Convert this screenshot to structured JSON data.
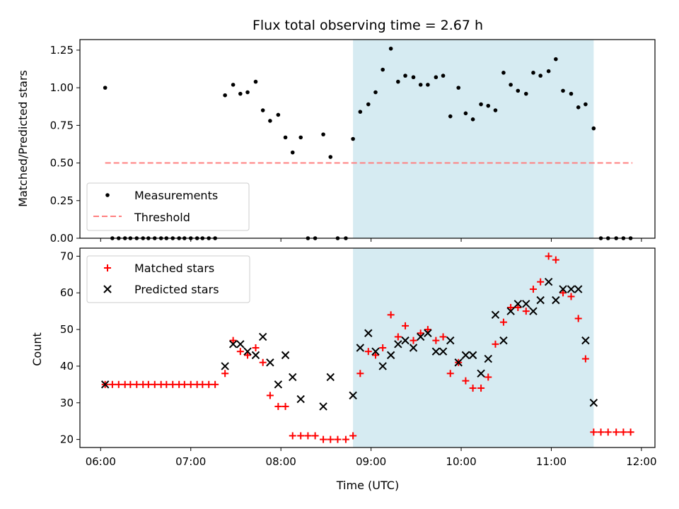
{
  "title": "Flux total observing time = 2.67 h",
  "colors": {
    "measurement": "#000000",
    "threshold": "#ff7f7f",
    "matched": "#ff0000",
    "predicted": "#000000",
    "window": "#add8e6"
  },
  "chart_data": [
    {
      "type": "scatter",
      "panel": "top",
      "ylabel": "Matched/Predicted stars",
      "xlim": [
        5.77,
        12.15
      ],
      "ylim": [
        0,
        1.32
      ],
      "yticks": [
        {
          "value": 0,
          "label": "0.00"
        },
        {
          "value": 0.25,
          "label": "0.25"
        },
        {
          "value": 0.5,
          "label": "0.50"
        },
        {
          "value": 0.75,
          "label": "0.75"
        },
        {
          "value": 1.0,
          "label": "1.00"
        },
        {
          "value": 1.25,
          "label": "1.25"
        }
      ],
      "shaded_region": {
        "x": [
          8.8,
          11.47
        ]
      },
      "threshold": {
        "name": "Threshold",
        "y": 0.5,
        "x": [
          6.05,
          11.9
        ]
      },
      "legend": {
        "location": "lower-left",
        "measurements": "Measurements",
        "threshold": "Threshold"
      },
      "series": [
        {
          "name": "Measurements",
          "points": [
            [
              6.05,
              1.0
            ],
            [
              6.13,
              0
            ],
            [
              6.2,
              0
            ],
            [
              6.27,
              0
            ],
            [
              6.33,
              0
            ],
            [
              6.4,
              0
            ],
            [
              6.47,
              0
            ],
            [
              6.53,
              0
            ],
            [
              6.6,
              0
            ],
            [
              6.67,
              0
            ],
            [
              6.73,
              0
            ],
            [
              6.8,
              0
            ],
            [
              6.87,
              0
            ],
            [
              6.93,
              0
            ],
            [
              7.0,
              0
            ],
            [
              7.07,
              0
            ],
            [
              7.13,
              0
            ],
            [
              7.2,
              0
            ],
            [
              7.27,
              0
            ],
            [
              7.38,
              0.95
            ],
            [
              7.47,
              1.02
            ],
            [
              7.55,
              0.96
            ],
            [
              7.63,
              0.97
            ],
            [
              7.72,
              1.04
            ],
            [
              7.8,
              0.85
            ],
            [
              7.88,
              0.78
            ],
            [
              7.97,
              0.82
            ],
            [
              8.05,
              0.67
            ],
            [
              8.13,
              0.57
            ],
            [
              8.22,
              0.67
            ],
            [
              8.3,
              0
            ],
            [
              8.38,
              0
            ],
            [
              8.47,
              0.69
            ],
            [
              8.55,
              0.54
            ],
            [
              8.63,
              0
            ],
            [
              8.72,
              0
            ],
            [
              8.8,
              0.66
            ],
            [
              8.88,
              0.84
            ],
            [
              8.97,
              0.89
            ],
            [
              9.05,
              0.97
            ],
            [
              9.13,
              1.12
            ],
            [
              9.22,
              1.26
            ],
            [
              9.3,
              1.04
            ],
            [
              9.38,
              1.08
            ],
            [
              9.47,
              1.07
            ],
            [
              9.55,
              1.02
            ],
            [
              9.63,
              1.02
            ],
            [
              9.72,
              1.07
            ],
            [
              9.8,
              1.08
            ],
            [
              9.88,
              0.81
            ],
            [
              9.97,
              1.0
            ],
            [
              10.05,
              0.83
            ],
            [
              10.13,
              0.79
            ],
            [
              10.22,
              0.89
            ],
            [
              10.3,
              0.88
            ],
            [
              10.38,
              0.85
            ],
            [
              10.47,
              1.1
            ],
            [
              10.55,
              1.02
            ],
            [
              10.63,
              0.98
            ],
            [
              10.72,
              0.96
            ],
            [
              10.8,
              1.1
            ],
            [
              10.88,
              1.08
            ],
            [
              10.97,
              1.11
            ],
            [
              11.05,
              1.19
            ],
            [
              11.13,
              0.98
            ],
            [
              11.22,
              0.96
            ],
            [
              11.3,
              0.87
            ],
            [
              11.38,
              0.89
            ],
            [
              11.47,
              0.73
            ],
            [
              11.55,
              0
            ],
            [
              11.63,
              0
            ],
            [
              11.72,
              0
            ],
            [
              11.8,
              0
            ],
            [
              11.88,
              0
            ]
          ]
        }
      ]
    },
    {
      "type": "scatter",
      "panel": "bottom",
      "ylabel": "Count",
      "xlabel": "Time (UTC)",
      "xlim": [
        5.77,
        12.15
      ],
      "ylim": [
        17.8,
        72.2
      ],
      "yticks": [
        {
          "value": 20,
          "label": "20"
        },
        {
          "value": 30,
          "label": "30"
        },
        {
          "value": 40,
          "label": "40"
        },
        {
          "value": 50,
          "label": "50"
        },
        {
          "value": 60,
          "label": "60"
        },
        {
          "value": 70,
          "label": "70"
        }
      ],
      "xticks": [
        {
          "value": 6,
          "label": "06:00"
        },
        {
          "value": 7,
          "label": "07:00"
        },
        {
          "value": 8,
          "label": "08:00"
        },
        {
          "value": 9,
          "label": "09:00"
        },
        {
          "value": 10,
          "label": "10:00"
        },
        {
          "value": 11,
          "label": "11:00"
        },
        {
          "value": 12,
          "label": "12:00"
        }
      ],
      "shaded_region": {
        "x": [
          8.8,
          11.47
        ]
      },
      "legend": {
        "location": "upper-left"
      },
      "series": [
        {
          "name": "Matched stars",
          "marker": "plus",
          "points": [
            [
              6.05,
              35
            ],
            [
              6.13,
              35
            ],
            [
              6.2,
              35
            ],
            [
              6.27,
              35
            ],
            [
              6.33,
              35
            ],
            [
              6.4,
              35
            ],
            [
              6.47,
              35
            ],
            [
              6.53,
              35
            ],
            [
              6.6,
              35
            ],
            [
              6.67,
              35
            ],
            [
              6.73,
              35
            ],
            [
              6.8,
              35
            ],
            [
              6.87,
              35
            ],
            [
              6.93,
              35
            ],
            [
              7.0,
              35
            ],
            [
              7.07,
              35
            ],
            [
              7.13,
              35
            ],
            [
              7.2,
              35
            ],
            [
              7.27,
              35
            ],
            [
              7.38,
              38
            ],
            [
              7.47,
              47
            ],
            [
              7.55,
              44
            ],
            [
              7.63,
              43
            ],
            [
              7.72,
              45
            ],
            [
              7.8,
              41
            ],
            [
              7.88,
              32
            ],
            [
              7.97,
              29
            ],
            [
              8.05,
              29
            ],
            [
              8.13,
              21
            ],
            [
              8.22,
              21
            ],
            [
              8.3,
              21
            ],
            [
              8.38,
              21
            ],
            [
              8.47,
              20
            ],
            [
              8.55,
              20
            ],
            [
              8.63,
              20
            ],
            [
              8.72,
              20
            ],
            [
              8.8,
              21
            ],
            [
              8.88,
              38
            ],
            [
              8.97,
              44
            ],
            [
              9.05,
              43
            ],
            [
              9.13,
              45
            ],
            [
              9.22,
              54
            ],
            [
              9.3,
              48
            ],
            [
              9.38,
              51
            ],
            [
              9.47,
              47
            ],
            [
              9.55,
              49
            ],
            [
              9.63,
              50
            ],
            [
              9.72,
              47
            ],
            [
              9.8,
              48
            ],
            [
              9.88,
              38
            ],
            [
              9.97,
              41
            ],
            [
              10.05,
              36
            ],
            [
              10.13,
              34
            ],
            [
              10.22,
              34
            ],
            [
              10.3,
              37
            ],
            [
              10.38,
              46
            ],
            [
              10.47,
              52
            ],
            [
              10.55,
              56
            ],
            [
              10.63,
              56
            ],
            [
              10.72,
              55
            ],
            [
              10.8,
              61
            ],
            [
              10.88,
              63
            ],
            [
              10.97,
              70
            ],
            [
              11.05,
              69
            ],
            [
              11.13,
              60
            ],
            [
              11.22,
              59
            ],
            [
              11.3,
              53
            ],
            [
              11.38,
              42
            ],
            [
              11.47,
              22
            ],
            [
              11.55,
              22
            ],
            [
              11.63,
              22
            ],
            [
              11.72,
              22
            ],
            [
              11.8,
              22
            ],
            [
              11.88,
              22
            ]
          ]
        },
        {
          "name": "Predicted stars",
          "marker": "x",
          "points": [
            [
              6.05,
              35
            ],
            [
              7.38,
              40
            ],
            [
              7.47,
              46
            ],
            [
              7.55,
              46
            ],
            [
              7.63,
              44
            ],
            [
              7.72,
              43
            ],
            [
              7.8,
              48
            ],
            [
              7.88,
              41
            ],
            [
              7.97,
              35
            ],
            [
              8.05,
              43
            ],
            [
              8.13,
              37
            ],
            [
              8.22,
              31
            ],
            [
              8.47,
              29
            ],
            [
              8.55,
              37
            ],
            [
              8.8,
              32
            ],
            [
              8.88,
              45
            ],
            [
              8.97,
              49
            ],
            [
              9.05,
              44
            ],
            [
              9.13,
              40
            ],
            [
              9.22,
              43
            ],
            [
              9.3,
              46
            ],
            [
              9.38,
              47
            ],
            [
              9.47,
              45
            ],
            [
              9.55,
              48
            ],
            [
              9.63,
              49
            ],
            [
              9.72,
              44
            ],
            [
              9.8,
              44
            ],
            [
              9.88,
              47
            ],
            [
              9.97,
              41
            ],
            [
              10.05,
              43
            ],
            [
              10.13,
              43
            ],
            [
              10.22,
              38
            ],
            [
              10.3,
              42
            ],
            [
              10.38,
              54
            ],
            [
              10.47,
              47
            ],
            [
              10.55,
              55
            ],
            [
              10.63,
              57
            ],
            [
              10.72,
              57
            ],
            [
              10.8,
              55
            ],
            [
              10.88,
              58
            ],
            [
              10.97,
              63
            ],
            [
              11.05,
              58
            ],
            [
              11.13,
              61
            ],
            [
              11.22,
              61
            ],
            [
              11.3,
              61
            ],
            [
              11.38,
              47
            ],
            [
              11.47,
              30
            ]
          ]
        }
      ]
    }
  ]
}
